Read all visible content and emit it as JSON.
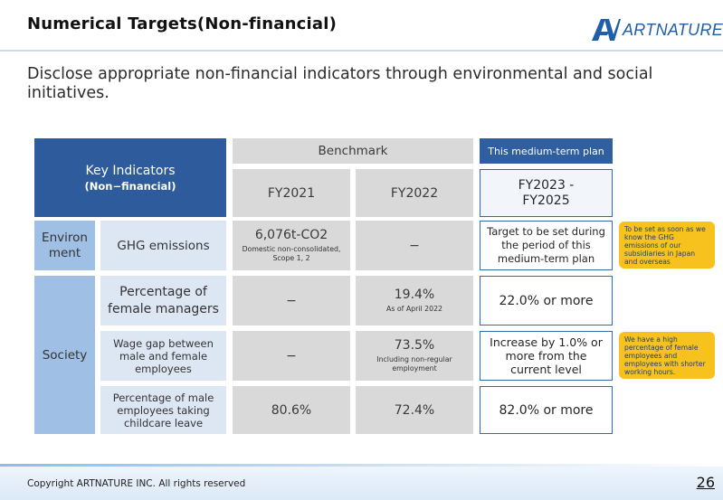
{
  "header": {
    "title": "Numerical Targets(Non-financial)",
    "logo_text": "ARTNATURE",
    "logo_mark": "AV logo mark"
  },
  "lead": "Disclose appropriate non-financial indicators through environmental and social initiatives.",
  "table": {
    "key_indicators_title": "Key Indicators",
    "key_indicators_sub": "(Non−financial)",
    "benchmark": "Benchmark",
    "plan_header": "This medium-term plan",
    "fy2021": "FY2021",
    "fy2022": "FY2022",
    "plan_period": "FY2023 - FY2025",
    "environment": {
      "category": "Environ ment",
      "indicator": "GHG emissions",
      "fy2021_value": "6,076t-CO2",
      "fy2021_note": "Domestic non-consolidated, Scope 1, 2",
      "fy2022_value": "−",
      "plan": "Target to be set during the period of this medium-term plan",
      "note": "To be set as soon as we know the GHG emissions of our subsidiaries in Japan and overseas"
    },
    "society": {
      "category": "Society",
      "rows": [
        {
          "indicator": "Percentage of female managers",
          "fy2021": "−",
          "fy2022": "19.4%",
          "fy2022_note": "As of April 2022",
          "plan": "22.0% or more"
        },
        {
          "indicator": "Wage gap between male and female employees",
          "fy2021": "−",
          "fy2022": "73.5%",
          "fy2022_note": "Including non-regular employment",
          "plan": "Increase by 1.0% or more from the current level"
        },
        {
          "indicator": "Percentage of male employees taking childcare leave",
          "fy2021": "80.6%",
          "fy2022": "72.4%",
          "plan": "82.0% or more"
        }
      ],
      "note": "We have a high percentage of female employees and employees with shorter working hours."
    }
  },
  "footer": {
    "copyright": "Copyright ARTNATURE INC. All rights reserved",
    "page": "26"
  },
  "colors": {
    "header_dark": "#2d5b9c",
    "plan_border": "#2e6bb0",
    "note_fill": "#f7c21d",
    "grey_cell": "#d9d9d9",
    "light_cell": "#dde7f4",
    "mid_cell": "#9fc0e4"
  }
}
